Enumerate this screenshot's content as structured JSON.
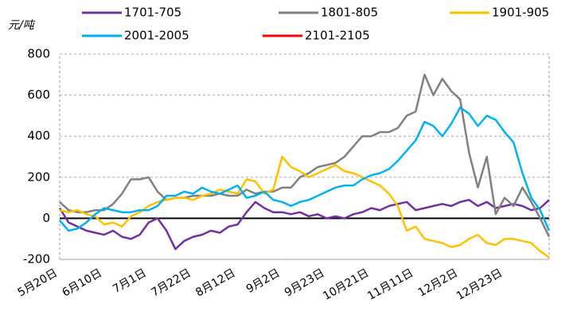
{
  "chart_data": {
    "type": "line",
    "ylabel": "元/吨",
    "categories": [
      "5月20日",
      null,
      null,
      null,
      null,
      "6月10日",
      null,
      null,
      null,
      null,
      "7月1日",
      null,
      null,
      null,
      null,
      "7月22日",
      null,
      null,
      null,
      null,
      "8月12日",
      null,
      null,
      null,
      null,
      "9月2日",
      null,
      null,
      null,
      null,
      "9月23日",
      null,
      null,
      null,
      null,
      "10月21日",
      null,
      null,
      null,
      null,
      "11月11日",
      null,
      null,
      null,
      null,
      "12月2日",
      null,
      null,
      null,
      null,
      "12月23日",
      null,
      null,
      null,
      null,
      null
    ],
    "series": [
      {
        "name": "1701-705",
        "color": "#7030a0",
        "values": [
          50,
          -20,
          -40,
          -60,
          -70,
          -80,
          -60,
          -90,
          -100,
          -80,
          -20,
          0,
          -60,
          -150,
          -110,
          -90,
          -80,
          -60,
          -70,
          -40,
          -30,
          30,
          80,
          50,
          30,
          30,
          20,
          30,
          10,
          20,
          0,
          10,
          0,
          20,
          30,
          50,
          40,
          60,
          70,
          80,
          40,
          50,
          60,
          70,
          60,
          80,
          90,
          60,
          80,
          50,
          60,
          70,
          60,
          40,
          50,
          90
        ]
      },
      {
        "name": "1801-805",
        "color": "#808080",
        "values": [
          80,
          40,
          30,
          30,
          40,
          40,
          70,
          120,
          190,
          190,
          200,
          130,
          90,
          100,
          100,
          110,
          110,
          110,
          120,
          110,
          110,
          140,
          120,
          130,
          130,
          150,
          150,
          200,
          220,
          250,
          260,
          270,
          300,
          350,
          400,
          400,
          420,
          420,
          440,
          500,
          520,
          700,
          600,
          680,
          620,
          580,
          320,
          150,
          300,
          20,
          100,
          60,
          150,
          80,
          0,
          -90
        ]
      },
      {
        "name": "1901-905",
        "color": "#ffc000",
        "values": [
          40,
          30,
          40,
          20,
          10,
          -30,
          -20,
          -40,
          10,
          30,
          60,
          80,
          90,
          100,
          100,
          90,
          110,
          120,
          140,
          130,
          120,
          190,
          180,
          120,
          140,
          300,
          250,
          230,
          200,
          220,
          240,
          260,
          230,
          220,
          200,
          180,
          160,
          120,
          60,
          -60,
          -40,
          -100,
          -110,
          -120,
          -140,
          -130,
          -100,
          -80,
          -120,
          -130,
          -100,
          -100,
          -110,
          -120,
          -160,
          -190
        ]
      },
      {
        "name": "2001-2005",
        "color": "#00b0f0",
        "values": [
          -10,
          -60,
          -50,
          -20,
          20,
          50,
          40,
          30,
          30,
          40,
          40,
          60,
          110,
          110,
          130,
          120,
          150,
          130,
          120,
          140,
          160,
          100,
          110,
          130,
          90,
          80,
          60,
          80,
          90,
          110,
          130,
          150,
          160,
          160,
          190,
          210,
          220,
          240,
          280,
          330,
          380,
          470,
          450,
          400,
          460,
          540,
          510,
          450,
          500,
          480,
          420,
          370,
          220,
          100,
          40,
          -60
        ]
      },
      {
        "name": "2101-2105",
        "color": "#ff0000",
        "values": [
          null,
          null,
          null,
          null,
          null,
          null,
          null,
          null,
          null,
          null,
          null,
          null,
          null,
          null,
          null,
          null,
          null,
          null,
          null,
          null,
          null,
          null,
          null,
          null,
          null,
          null,
          null,
          null,
          null,
          null,
          null,
          null,
          null,
          null,
          null,
          null,
          null,
          null,
          null,
          null,
          null,
          null,
          null,
          null,
          null,
          null,
          null,
          null,
          null,
          null,
          null,
          null,
          null,
          null,
          null,
          null
        ]
      }
    ],
    "ylim": [
      -200,
      800
    ],
    "yticks": [
      -200,
      0,
      200,
      400,
      600,
      800
    ],
    "grid": true
  }
}
